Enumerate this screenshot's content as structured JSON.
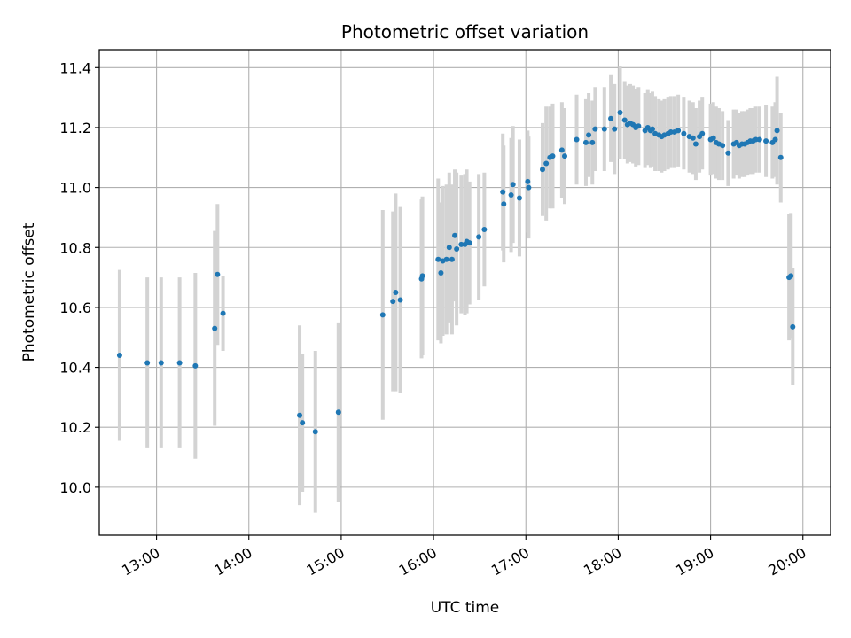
{
  "chart_data": {
    "type": "scatter",
    "title": "Photometric offset variation",
    "xlabel": "UTC time",
    "ylabel": "Photometric offset",
    "x_unit": "hours",
    "xlim": [
      12.38,
      20.3
    ],
    "ylim": [
      9.84,
      11.46
    ],
    "x_ticks": [
      13,
      14,
      15,
      16,
      17,
      18,
      19,
      20
    ],
    "x_tick_labels": [
      "13:00",
      "14:00",
      "15:00",
      "16:00",
      "17:00",
      "18:00",
      "19:00",
      "20:00"
    ],
    "y_ticks": [
      10.0,
      10.2,
      10.4,
      10.6,
      10.8,
      11.0,
      11.2,
      11.4
    ],
    "y_tick_labels": [
      "10.0",
      "10.2",
      "10.4",
      "10.6",
      "10.8",
      "11.0",
      "11.2",
      "11.4"
    ],
    "grid": true,
    "colors": {
      "points": "#1f77b4",
      "error_bars": "#d3d3d3",
      "grid": "#b0b0b0"
    },
    "series": [
      {
        "x": [
          12.6,
          12.9,
          13.05,
          13.25,
          13.42,
          13.63,
          13.66,
          13.72,
          14.55,
          14.58,
          14.72,
          14.97,
          15.45,
          15.56,
          15.59,
          15.64,
          15.87,
          15.88,
          16.05,
          16.08,
          16.1,
          16.14,
          16.17,
          16.2,
          16.23,
          16.25,
          16.3,
          16.34,
          16.36,
          16.39,
          16.49,
          16.55,
          16.75,
          16.76,
          16.84,
          16.86,
          16.93,
          17.02,
          17.03,
          17.18,
          17.22,
          17.26,
          17.29,
          17.39,
          17.42,
          17.55,
          17.65,
          17.68,
          17.72,
          17.75,
          17.85,
          17.92,
          17.96,
          18.02,
          18.07,
          18.1,
          18.13,
          18.16,
          18.19,
          18.22,
          18.29,
          18.32,
          18.35,
          18.37,
          18.4,
          18.44,
          18.47,
          18.5,
          18.54,
          18.57,
          18.61,
          18.65,
          18.71,
          18.77,
          18.81,
          18.84,
          18.88,
          18.91,
          19.0,
          19.03,
          19.06,
          19.09,
          19.13,
          19.19,
          19.25,
          19.28,
          19.31,
          19.34,
          19.37,
          19.4,
          19.43,
          19.46,
          19.49,
          19.53,
          19.6,
          19.67,
          19.7,
          19.72,
          19.76,
          19.85,
          19.87,
          19.89
        ],
        "y": [
          10.44,
          10.415,
          10.415,
          10.415,
          10.405,
          10.53,
          10.71,
          10.58,
          10.24,
          10.215,
          10.185,
          10.25,
          10.575,
          10.62,
          10.65,
          10.625,
          10.695,
          10.705,
          10.76,
          10.715,
          10.755,
          10.76,
          10.8,
          10.76,
          10.84,
          10.795,
          10.81,
          10.81,
          10.82,
          10.815,
          10.835,
          10.86,
          10.985,
          10.945,
          10.975,
          11.01,
          10.965,
          11.02,
          11.0,
          11.06,
          11.08,
          11.1,
          11.105,
          11.125,
          11.105,
          11.16,
          11.15,
          11.175,
          11.15,
          11.195,
          11.195,
          11.23,
          11.195,
          11.25,
          11.225,
          11.21,
          11.215,
          11.21,
          11.2,
          11.205,
          11.19,
          11.2,
          11.19,
          11.195,
          11.18,
          11.175,
          11.17,
          11.175,
          11.18,
          11.185,
          11.185,
          11.19,
          11.18,
          11.17,
          11.165,
          11.145,
          11.17,
          11.18,
          11.16,
          11.165,
          11.15,
          11.145,
          11.14,
          11.115,
          11.145,
          11.15,
          11.14,
          11.145,
          11.145,
          11.15,
          11.155,
          11.155,
          11.16,
          11.16,
          11.155,
          11.15,
          11.16,
          11.19,
          11.1,
          10.7,
          10.705,
          10.535
        ],
        "error": [
          0.285,
          0.285,
          0.285,
          0.285,
          0.31,
          0.325,
          0.235,
          0.125,
          0.3,
          0.23,
          0.27,
          0.3,
          0.35,
          0.3,
          0.33,
          0.31,
          0.265,
          0.265,
          0.27,
          0.235,
          0.25,
          0.25,
          0.25,
          0.25,
          0.22,
          0.255,
          0.23,
          0.235,
          0.24,
          0.205,
          0.21,
          0.19,
          0.195,
          0.195,
          0.19,
          0.195,
          0.195,
          0.17,
          0.17,
          0.155,
          0.19,
          0.17,
          0.175,
          0.16,
          0.16,
          0.15,
          0.145,
          0.14,
          0.14,
          0.14,
          0.14,
          0.145,
          0.15,
          0.155,
          0.13,
          0.13,
          0.13,
          0.13,
          0.13,
          0.13,
          0.125,
          0.125,
          0.125,
          0.125,
          0.125,
          0.12,
          0.12,
          0.12,
          0.12,
          0.12,
          0.12,
          0.12,
          0.12,
          0.12,
          0.12,
          0.12,
          0.12,
          0.12,
          0.12,
          0.12,
          0.12,
          0.12,
          0.115,
          0.11,
          0.115,
          0.11,
          0.11,
          0.11,
          0.11,
          0.11,
          0.11,
          0.11,
          0.11,
          0.11,
          0.12,
          0.12,
          0.125,
          0.18,
          0.15,
          0.21,
          0.21,
          0.195
        ]
      }
    ]
  }
}
